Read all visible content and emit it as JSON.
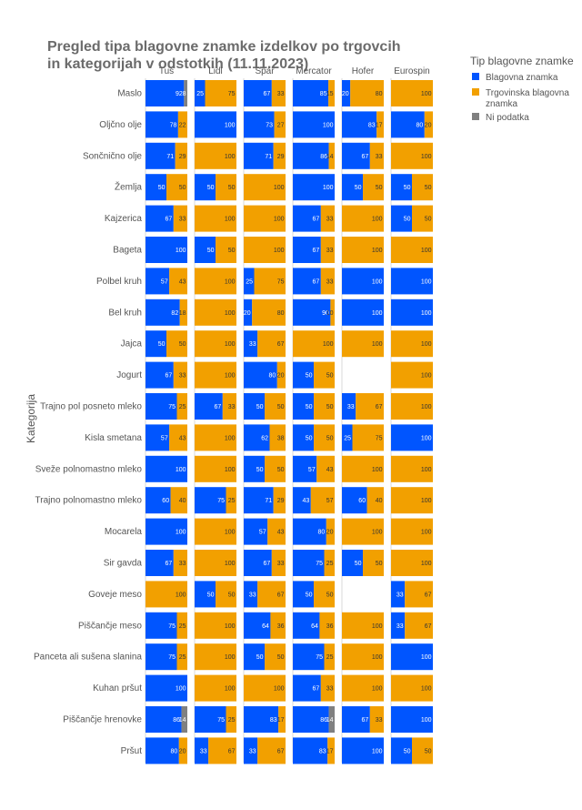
{
  "chart_data": {
    "type": "bar",
    "orientation": "horizontal",
    "stacked": "percent",
    "title_line1": "Pregled tipa blagovne znamke izdelkov po trgovcih",
    "title_line2": "in kategorijah v odstotkih (11.11.2023)",
    "ylabel": "Kategorija",
    "xlim": [
      0,
      100
    ],
    "grid": false,
    "legend_position": "top-right",
    "legend": {
      "title": "Tip blagovne znamke",
      "entries": [
        {
          "name_line1": "Blagovna znamka",
          "name_line2": "",
          "color": "#0055FF"
        },
        {
          "name_line1": "Trgovinska blagovna",
          "name_line2": "znamka",
          "color": "#F2A000"
        },
        {
          "name_line1": "Ni podatka",
          "name_line2": "",
          "color": "#808080"
        }
      ]
    },
    "stores": [
      "Tuš",
      "Lidl",
      "Spar",
      "Mercator",
      "Hofer",
      "Eurospin"
    ],
    "categories": [
      "Maslo",
      "Oljčno olje",
      "Sončnično olje",
      "Žemlja",
      "Kajzerica",
      "Bageta",
      "Polbel kruh",
      "Bel kruh",
      "Jajca",
      "Jogurt",
      "Trajno pol posneto mleko",
      "Kisla smetana",
      "Sveže polnomastno mleko",
      "Trajno polnomastno mleko",
      "Mocarela",
      "Sir gavda",
      "Goveje meso",
      "Piščančje meso",
      "Panceta ali sušena slanina",
      "Kuhan pršut",
      "Piščančje hrenovke",
      "Pršut"
    ],
    "values": [
      [
        [
          92,
          0,
          8
        ],
        [
          25,
          75,
          0
        ],
        [
          67,
          33,
          0
        ],
        [
          85,
          15,
          0
        ],
        [
          20,
          80,
          0
        ],
        [
          0,
          100,
          0
        ]
      ],
      [
        [
          78,
          22,
          0
        ],
        [
          100,
          0,
          0
        ],
        [
          73,
          27,
          0
        ],
        [
          100,
          0,
          0
        ],
        [
          83,
          17,
          0
        ],
        [
          80,
          20,
          0
        ]
      ],
      [
        [
          71,
          29,
          0
        ],
        [
          0,
          100,
          0
        ],
        [
          71,
          29,
          0
        ],
        [
          86,
          14,
          0
        ],
        [
          67,
          33,
          0
        ],
        [
          0,
          100,
          0
        ]
      ],
      [
        [
          50,
          50,
          0
        ],
        [
          50,
          50,
          0
        ],
        [
          0,
          100,
          0
        ],
        [
          100,
          0,
          0
        ],
        [
          50,
          50,
          0
        ],
        [
          50,
          50,
          0
        ]
      ],
      [
        [
          67,
          33,
          0
        ],
        [
          0,
          100,
          0
        ],
        [
          0,
          100,
          0
        ],
        [
          67,
          33,
          0
        ],
        [
          0,
          100,
          0
        ],
        [
          50,
          50,
          0
        ]
      ],
      [
        [
          100,
          0,
          0
        ],
        [
          50,
          50,
          0
        ],
        [
          0,
          100,
          0
        ],
        [
          67,
          33,
          0
        ],
        [
          0,
          100,
          0
        ],
        [
          0,
          100,
          0
        ]
      ],
      [
        [
          57,
          43,
          0
        ],
        [
          0,
          100,
          0
        ],
        [
          25,
          75,
          0
        ],
        [
          67,
          33,
          0
        ],
        [
          100,
          0,
          0
        ],
        [
          100,
          0,
          0
        ]
      ],
      [
        [
          82,
          18,
          0
        ],
        [
          0,
          100,
          0
        ],
        [
          20,
          80,
          0
        ],
        [
          90,
          10,
          0
        ],
        [
          100,
          0,
          0
        ],
        [
          100,
          0,
          0
        ]
      ],
      [
        [
          50,
          50,
          0
        ],
        [
          0,
          100,
          0
        ],
        [
          33,
          67,
          0
        ],
        [
          0,
          100,
          0
        ],
        [
          0,
          100,
          0
        ],
        [
          0,
          100,
          0
        ]
      ],
      [
        [
          67,
          33,
          0
        ],
        [
          0,
          100,
          0
        ],
        [
          80,
          20,
          0
        ],
        [
          50,
          50,
          0
        ],
        null,
        [
          0,
          100,
          0
        ]
      ],
      [
        [
          75,
          25,
          0
        ],
        [
          67,
          33,
          0
        ],
        [
          50,
          50,
          0
        ],
        [
          50,
          50,
          0
        ],
        [
          33,
          67,
          0
        ],
        [
          0,
          100,
          0
        ]
      ],
      [
        [
          57,
          43,
          0
        ],
        [
          0,
          100,
          0
        ],
        [
          62,
          38,
          0
        ],
        [
          50,
          50,
          0
        ],
        [
          25,
          75,
          0
        ],
        [
          100,
          0,
          0
        ]
      ],
      [
        [
          100,
          0,
          0
        ],
        [
          0,
          100,
          0
        ],
        [
          50,
          50,
          0
        ],
        [
          57,
          43,
          0
        ],
        [
          0,
          100,
          0
        ],
        [
          0,
          100,
          0
        ]
      ],
      [
        [
          60,
          40,
          0
        ],
        [
          75,
          25,
          0
        ],
        [
          71,
          29,
          0
        ],
        [
          43,
          57,
          0
        ],
        [
          60,
          40,
          0
        ],
        [
          0,
          100,
          0
        ]
      ],
      [
        [
          100,
          0,
          0
        ],
        [
          0,
          100,
          0
        ],
        [
          57,
          43,
          0
        ],
        [
          80,
          20,
          0
        ],
        [
          0,
          100,
          0
        ],
        [
          0,
          100,
          0
        ]
      ],
      [
        [
          67,
          33,
          0
        ],
        [
          0,
          100,
          0
        ],
        [
          67,
          33,
          0
        ],
        [
          75,
          25,
          0
        ],
        [
          50,
          50,
          0
        ],
        [
          0,
          100,
          0
        ]
      ],
      [
        [
          0,
          100,
          0
        ],
        [
          50,
          50,
          0
        ],
        [
          33,
          67,
          0
        ],
        [
          50,
          50,
          0
        ],
        null,
        [
          33,
          67,
          0
        ]
      ],
      [
        [
          75,
          25,
          0
        ],
        [
          0,
          100,
          0
        ],
        [
          64,
          36,
          0
        ],
        [
          64,
          36,
          0
        ],
        [
          0,
          100,
          0
        ],
        [
          33,
          67,
          0
        ]
      ],
      [
        [
          75,
          25,
          0
        ],
        [
          0,
          100,
          0
        ],
        [
          50,
          50,
          0
        ],
        [
          75,
          25,
          0
        ],
        [
          0,
          100,
          0
        ],
        [
          100,
          0,
          0
        ]
      ],
      [
        [
          100,
          0,
          0
        ],
        [
          0,
          100,
          0
        ],
        [
          0,
          100,
          0
        ],
        [
          67,
          33,
          0
        ],
        [
          0,
          100,
          0
        ],
        [
          0,
          100,
          0
        ]
      ],
      [
        [
          86,
          0,
          14
        ],
        [
          75,
          25,
          0
        ],
        [
          83,
          17,
          0
        ],
        [
          86,
          0,
          14
        ],
        [
          67,
          33,
          0
        ],
        [
          100,
          0,
          0
        ]
      ],
      [
        [
          80,
          20,
          0
        ],
        [
          33,
          67,
          0
        ],
        [
          33,
          67,
          0
        ],
        [
          83,
          17,
          0
        ],
        [
          100,
          0,
          0
        ],
        [
          50,
          50,
          0
        ]
      ]
    ]
  }
}
